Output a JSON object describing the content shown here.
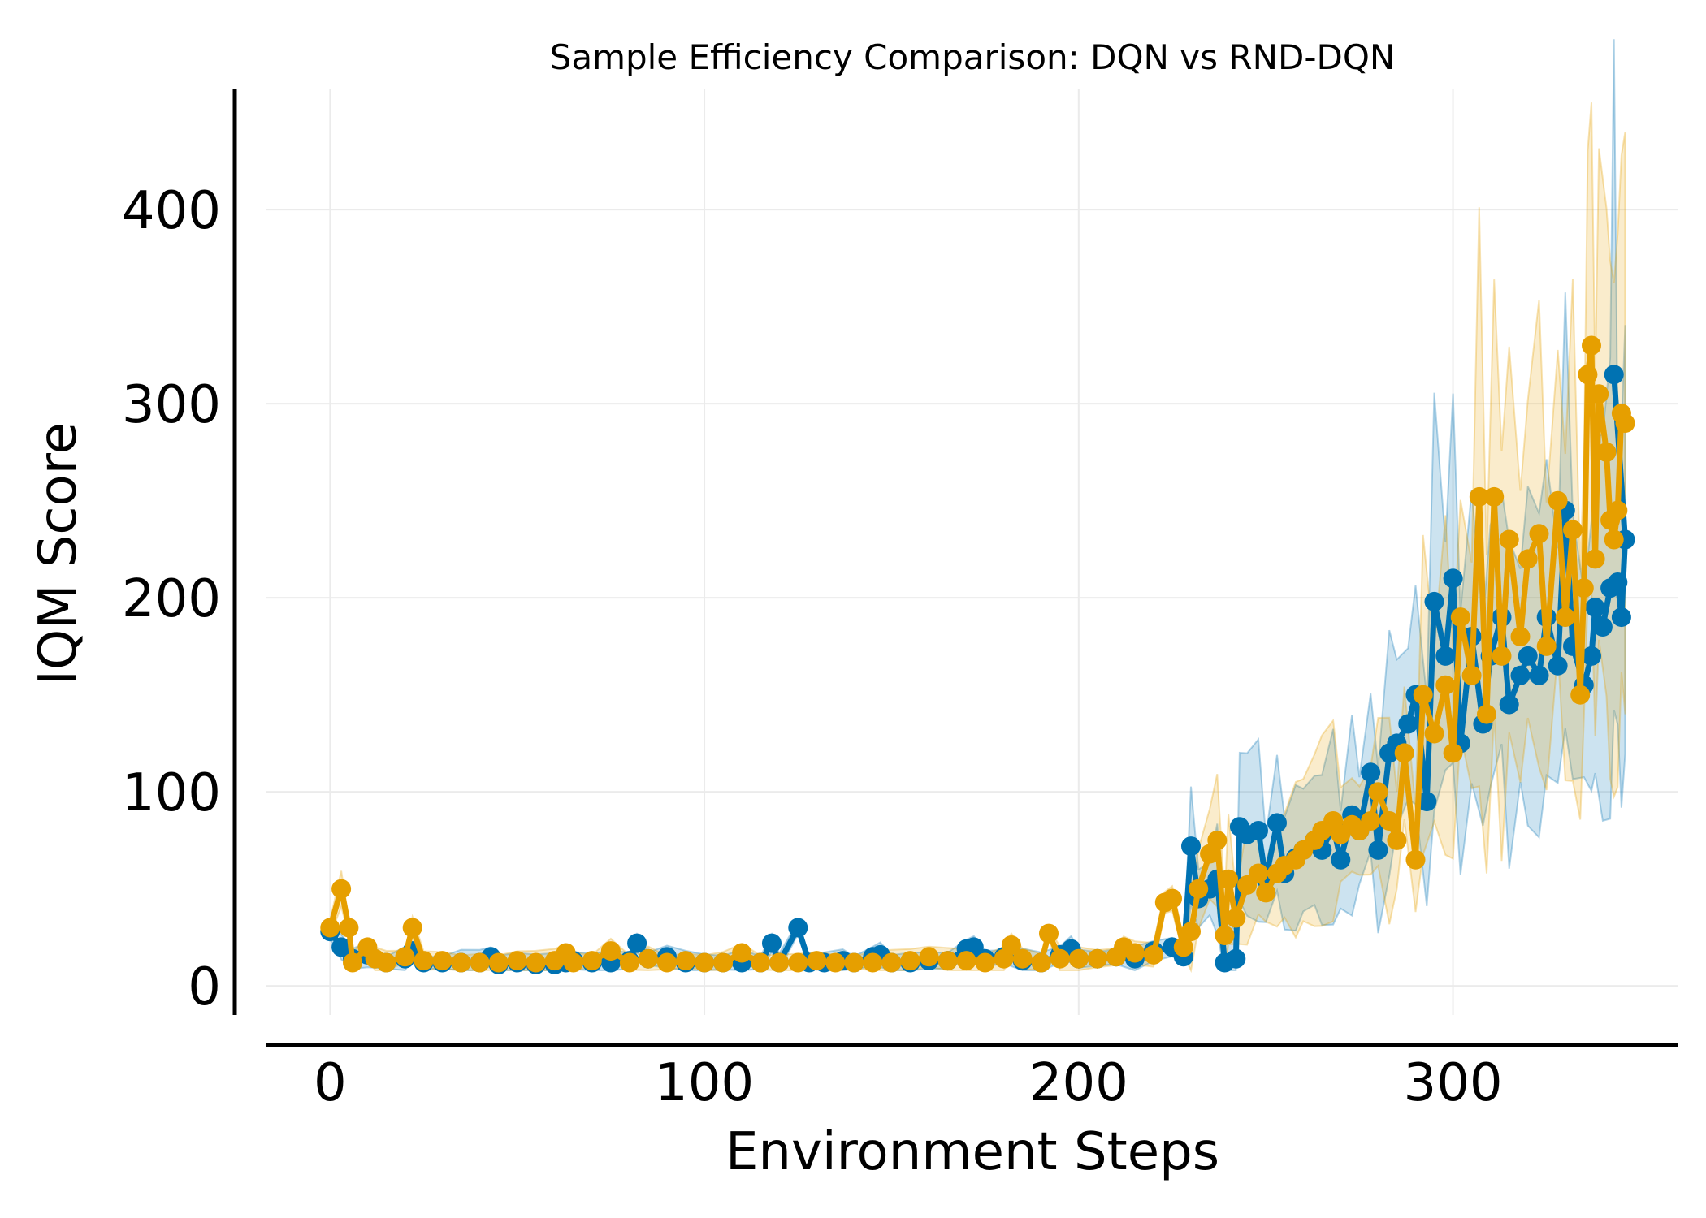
{
  "chart_data": {
    "type": "line",
    "title": "Sample Efficiency Comparison: DQN vs RND-DQN",
    "xlabel": "Environment Steps",
    "ylabel": "IQM Score",
    "xlim": [
      -17,
      360
    ],
    "ylim": [
      -15,
      462
    ],
    "xticks": [
      0,
      100,
      200,
      300
    ],
    "yticks": [
      0,
      100,
      200,
      300,
      400
    ],
    "grid": true,
    "legend": "none",
    "band": "shaded min-max range per series",
    "colors": {
      "dqn": "#0072b2",
      "rnd_dqn": "#e69f00"
    },
    "series": [
      {
        "key": "dqn",
        "points": [
          [
            0,
            28
          ],
          [
            3,
            20
          ],
          [
            6,
            14
          ],
          [
            10,
            16
          ],
          [
            15,
            12
          ],
          [
            20,
            14
          ],
          [
            22,
            18
          ],
          [
            25,
            12
          ],
          [
            30,
            12
          ],
          [
            35,
            12
          ],
          [
            40,
            12
          ],
          [
            43,
            15
          ],
          [
            45,
            11
          ],
          [
            50,
            12
          ],
          [
            55,
            11
          ],
          [
            60,
            11
          ],
          [
            63,
            12
          ],
          [
            65,
            13
          ],
          [
            70,
            12
          ],
          [
            75,
            12
          ],
          [
            80,
            13
          ],
          [
            82,
            22
          ],
          [
            85,
            14
          ],
          [
            90,
            15
          ],
          [
            95,
            12
          ],
          [
            100,
            12
          ],
          [
            105,
            12
          ],
          [
            110,
            12
          ],
          [
            115,
            12
          ],
          [
            118,
            22
          ],
          [
            120,
            12
          ],
          [
            125,
            30
          ],
          [
            128,
            12
          ],
          [
            132,
            12
          ],
          [
            137,
            13
          ],
          [
            140,
            12
          ],
          [
            145,
            15
          ],
          [
            147,
            16
          ],
          [
            150,
            12
          ],
          [
            155,
            12
          ],
          [
            160,
            13
          ],
          [
            165,
            13
          ],
          [
            170,
            19
          ],
          [
            172,
            20
          ],
          [
            175,
            14
          ],
          [
            180,
            15
          ],
          [
            185,
            13
          ],
          [
            190,
            12
          ],
          [
            195,
            16
          ],
          [
            198,
            19
          ],
          [
            200,
            14
          ],
          [
            205,
            14
          ],
          [
            210,
            15
          ],
          [
            215,
            14
          ],
          [
            220,
            18
          ],
          [
            225,
            20
          ],
          [
            228,
            15
          ],
          [
            230,
            72
          ],
          [
            232,
            45
          ],
          [
            235,
            50
          ],
          [
            237,
            55
          ],
          [
            239,
            12
          ],
          [
            242,
            14
          ],
          [
            243,
            82
          ],
          [
            245,
            78
          ],
          [
            248,
            80
          ],
          [
            250,
            55
          ],
          [
            253,
            84
          ],
          [
            255,
            58
          ],
          [
            258,
            66
          ],
          [
            260,
            70
          ],
          [
            263,
            75
          ],
          [
            265,
            70
          ],
          [
            268,
            82
          ],
          [
            270,
            65
          ],
          [
            273,
            88
          ],
          [
            275,
            80
          ],
          [
            278,
            110
          ],
          [
            280,
            70
          ],
          [
            283,
            120
          ],
          [
            285,
            125
          ],
          [
            288,
            135
          ],
          [
            290,
            150
          ],
          [
            293,
            95
          ],
          [
            295,
            198
          ],
          [
            298,
            170
          ],
          [
            300,
            210
          ],
          [
            302,
            125
          ],
          [
            305,
            180
          ],
          [
            308,
            135
          ],
          [
            310,
            170
          ],
          [
            313,
            190
          ],
          [
            315,
            145
          ],
          [
            318,
            160
          ],
          [
            320,
            170
          ],
          [
            323,
            160
          ],
          [
            325,
            190
          ],
          [
            328,
            165
          ],
          [
            330,
            245
          ],
          [
            332,
            175
          ],
          [
            335,
            155
          ],
          [
            337,
            170
          ],
          [
            338,
            195
          ],
          [
            340,
            185
          ],
          [
            342,
            205
          ],
          [
            344,
            208
          ],
          [
            345,
            190
          ],
          [
            346,
            230
          ],
          [
            343,
            315
          ]
        ]
      },
      {
        "key": "rnd_dqn",
        "points": [
          [
            0,
            30
          ],
          [
            3,
            50
          ],
          [
            5,
            30
          ],
          [
            6,
            12
          ],
          [
            10,
            20
          ],
          [
            12,
            14
          ],
          [
            15,
            12
          ],
          [
            20,
            15
          ],
          [
            22,
            30
          ],
          [
            25,
            13
          ],
          [
            30,
            13
          ],
          [
            35,
            12
          ],
          [
            40,
            12
          ],
          [
            45,
            12
          ],
          [
            50,
            13
          ],
          [
            55,
            12
          ],
          [
            60,
            13
          ],
          [
            63,
            17
          ],
          [
            65,
            12
          ],
          [
            70,
            13
          ],
          [
            75,
            18
          ],
          [
            80,
            12
          ],
          [
            85,
            14
          ],
          [
            90,
            12
          ],
          [
            95,
            13
          ],
          [
            100,
            12
          ],
          [
            105,
            12
          ],
          [
            110,
            17
          ],
          [
            115,
            12
          ],
          [
            120,
            12
          ],
          [
            125,
            12
          ],
          [
            130,
            13
          ],
          [
            135,
            12
          ],
          [
            140,
            12
          ],
          [
            145,
            12
          ],
          [
            150,
            12
          ],
          [
            155,
            13
          ],
          [
            160,
            15
          ],
          [
            165,
            13
          ],
          [
            170,
            13
          ],
          [
            175,
            12
          ],
          [
            180,
            14
          ],
          [
            182,
            21
          ],
          [
            185,
            14
          ],
          [
            190,
            12
          ],
          [
            192,
            27
          ],
          [
            195,
            14
          ],
          [
            200,
            14
          ],
          [
            205,
            14
          ],
          [
            210,
            15
          ],
          [
            212,
            20
          ],
          [
            215,
            17
          ],
          [
            220,
            16
          ],
          [
            223,
            43
          ],
          [
            225,
            45
          ],
          [
            228,
            20
          ],
          [
            230,
            28
          ],
          [
            232,
            50
          ],
          [
            235,
            68
          ],
          [
            237,
            75
          ],
          [
            239,
            26
          ],
          [
            240,
            55
          ],
          [
            242,
            35
          ],
          [
            245,
            52
          ],
          [
            248,
            58
          ],
          [
            250,
            48
          ],
          [
            253,
            58
          ],
          [
            255,
            62
          ],
          [
            258,
            65
          ],
          [
            260,
            70
          ],
          [
            263,
            75
          ],
          [
            265,
            80
          ],
          [
            268,
            85
          ],
          [
            270,
            78
          ],
          [
            273,
            83
          ],
          [
            275,
            80
          ],
          [
            278,
            85
          ],
          [
            280,
            100
          ],
          [
            283,
            85
          ],
          [
            285,
            75
          ],
          [
            287,
            120
          ],
          [
            290,
            65
          ],
          [
            292,
            150
          ],
          [
            295,
            130
          ],
          [
            298,
            155
          ],
          [
            300,
            120
          ],
          [
            302,
            190
          ],
          [
            305,
            160
          ],
          [
            307,
            252
          ],
          [
            309,
            140
          ],
          [
            311,
            252
          ],
          [
            313,
            170
          ],
          [
            315,
            230
          ],
          [
            318,
            180
          ],
          [
            320,
            220
          ],
          [
            323,
            233
          ],
          [
            325,
            175
          ],
          [
            328,
            250
          ],
          [
            330,
            190
          ],
          [
            332,
            235
          ],
          [
            334,
            150
          ],
          [
            335,
            205
          ],
          [
            336,
            315
          ],
          [
            337,
            330
          ],
          [
            338,
            220
          ],
          [
            339,
            305
          ],
          [
            341,
            275
          ],
          [
            342,
            240
          ],
          [
            343,
            230
          ],
          [
            344,
            245
          ],
          [
            345,
            295
          ],
          [
            346,
            290
          ]
        ]
      }
    ]
  }
}
